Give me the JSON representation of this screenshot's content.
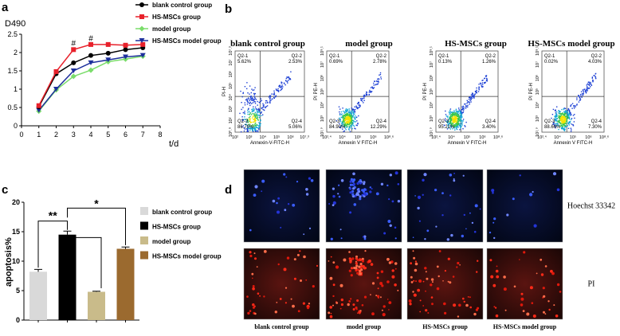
{
  "panels": {
    "a": "a",
    "b": "b",
    "c": "c",
    "d": "d"
  },
  "chart_data": [
    {
      "type": "line",
      "ylabel": "D490",
      "xlabel": "t/d",
      "x": [
        1,
        2,
        3,
        4,
        5,
        6,
        7
      ],
      "xlim": [
        0,
        8
      ],
      "ylim": [
        0,
        2.5
      ],
      "xticks": [
        "0",
        "1",
        "2",
        "3",
        "4",
        "5",
        "6",
        "7",
        "8"
      ],
      "yticks": [
        "0",
        "0.5",
        "1",
        "1.5",
        "2",
        "2.5"
      ],
      "series": [
        {
          "name": "blank control group",
          "color": "#000000",
          "marker": "circle",
          "values": [
            0.52,
            1.42,
            1.72,
            1.92,
            1.98,
            2.08,
            2.13
          ]
        },
        {
          "name": "HS-MSCs group",
          "color": "#e8212b",
          "marker": "square",
          "values": [
            0.55,
            1.48,
            2.08,
            2.22,
            2.22,
            2.2,
            2.22
          ]
        },
        {
          "name": "model group",
          "color": "#7bdd6b",
          "marker": "diamond",
          "values": [
            0.4,
            0.98,
            1.35,
            1.52,
            1.75,
            1.82,
            1.9
          ]
        },
        {
          "name": "HS-MSCs model group",
          "color": "#1d2f9c",
          "marker": "triangle",
          "values": [
            0.42,
            1.0,
            1.5,
            1.72,
            1.8,
            1.88,
            1.92
          ]
        }
      ],
      "annotations": [
        {
          "text": "#",
          "x": 3,
          "y": 2.18
        },
        {
          "text": "#",
          "x": 4,
          "y": 2.32
        }
      ]
    },
    {
      "type": "scatter",
      "titles": [
        "blank control  group",
        "model  group",
        "HS-MSCs group",
        "HS-MSCs model group"
      ],
      "xlabels": [
        "Annexin-V-FITC-H",
        "Annexin V FITC-H",
        "Annexin V FITC-H",
        "Annexin V FITC-H"
      ],
      "ylabels": [
        "PI-H",
        "PI PE-H",
        "PI PE-H",
        "PI PE-H"
      ],
      "plots": [
        {
          "q1": [
            "Q2-1",
            "5.62%"
          ],
          "q2": [
            "Q2-2",
            "2.53%"
          ],
          "q3": [
            "Q2-3",
            "86.79%"
          ],
          "q4": [
            "Q2-4",
            "5.06%"
          ]
        },
        {
          "q1": [
            "Q2-1",
            "0.69%"
          ],
          "q2": [
            "Q2-2",
            "2.78%"
          ],
          "q3": [
            "Q2-3",
            "84.90%"
          ],
          "q4": [
            "Q2-4",
            "12.29%"
          ]
        },
        {
          "q1": [
            "Q2-1",
            "0.13%"
          ],
          "q2": [
            "Q2-2",
            "1.26%"
          ],
          "q3": [
            "Q2-3",
            "95.21%"
          ],
          "q4": [
            "Q2-4",
            "3.40%"
          ]
        },
        {
          "q1": [
            "Q2-1",
            "0.02%"
          ],
          "q2": [
            "Q2-2",
            "4.03%"
          ],
          "q3": [
            "Q2-3",
            "88.66%"
          ],
          "q4": [
            "Q2-4",
            "7.30%"
          ]
        }
      ],
      "xticks_first": [
        "10²",
        "10³",
        "10⁴",
        "10⁵",
        "10⁶",
        "10⁷.³"
      ],
      "xticks_rest": [
        "10².⁴",
        "10⁴",
        "10⁵",
        "10⁶",
        "10⁸.⁶"
      ],
      "yticks_first": [
        "10⁰.⁸",
        "10²",
        "10³",
        "10⁴",
        "10⁵",
        "10⁶",
        "10⁷",
        "10⁷.³"
      ],
      "yticks_rest": [
        "10¹.⁹",
        "10³",
        "10⁴",
        "10⁵",
        "10⁶",
        "10⁷",
        "10⁸.¹"
      ]
    },
    {
      "type": "bar",
      "ylabel": "apoptosis%",
      "categories": [
        "blank control group",
        "HS-MSCs group",
        "model group",
        "HS-MSCs model group"
      ],
      "values": [
        8.2,
        14.5,
        4.8,
        12.1
      ],
      "errors": [
        0.4,
        0.6,
        0.1,
        0.3
      ],
      "colors": [
        "#d9d9d9",
        "#000000",
        "#c9bb8a",
        "#9b6a2f"
      ],
      "ylim": [
        0,
        20
      ],
      "yticks": [
        "0",
        "5",
        "10",
        "15",
        "20"
      ],
      "significance": [
        {
          "text": "**",
          "from": 0,
          "to": 1
        },
        {
          "text": "*",
          "from": 1,
          "to": 3
        }
      ]
    }
  ],
  "microscopy": {
    "row_labels": [
      "Hoechst 33342",
      "PI"
    ],
    "col_labels": [
      "blank control group",
      "model group",
      "HS-MSCs group",
      "HS-MSCs model group"
    ]
  }
}
